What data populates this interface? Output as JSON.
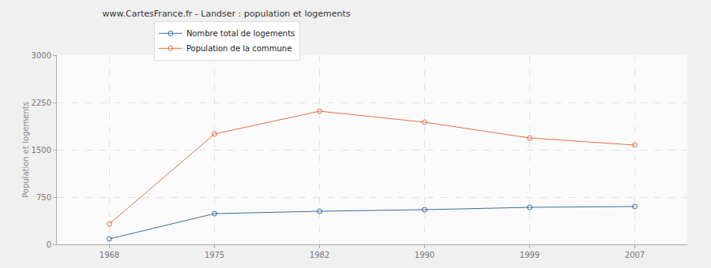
{
  "chart_data": {
    "type": "line",
    "title": "www.CartesFrance.fr - Landser : population et logements",
    "y_label": "Population et logements",
    "categories": [
      "1968",
      "1975",
      "1982",
      "1990",
      "1999",
      "2007"
    ],
    "series": [
      {
        "name": "Nombre total de logements",
        "color": "#3d6e9e",
        "values": [
          87,
          487,
          525,
          550,
          587,
          600
        ]
      },
      {
        "name": "Population de la commune",
        "color": "#e0704a",
        "values": [
          325,
          1750,
          2112,
          1937,
          1687,
          1575
        ]
      }
    ],
    "ylim": [
      0,
      3000
    ],
    "yticks": [
      0,
      750,
      1500,
      2250,
      3000
    ],
    "grid": true,
    "legend": "top",
    "marker": "circle"
  }
}
